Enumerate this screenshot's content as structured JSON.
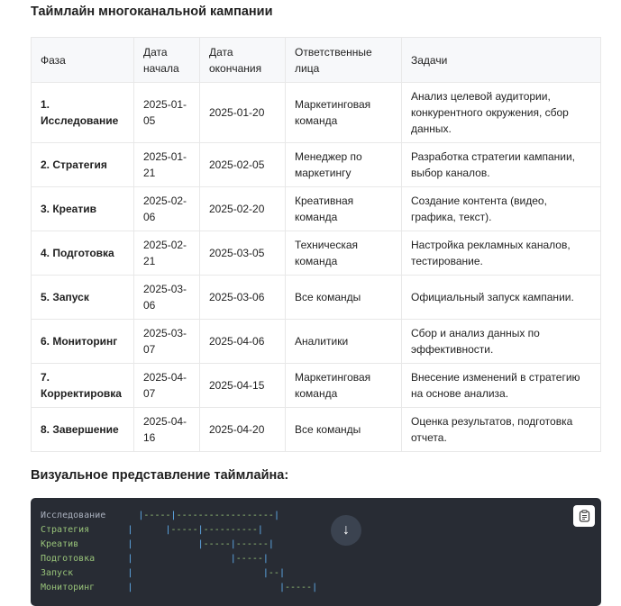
{
  "title": "Таймлайн многоканальной кампании",
  "table": {
    "headers": [
      "Фаза",
      "Дата начала",
      "Дата окончания",
      "Ответственные лица",
      "Задачи"
    ],
    "rows": [
      [
        "1. Исследование",
        "2025-01-05",
        "2025-01-20",
        "Маркетинговая команда",
        "Анализ целевой аудитории, конкурентного окружения, сбор данных."
      ],
      [
        "2. Стратегия",
        "2025-01-21",
        "2025-02-05",
        "Менеджер по маркетингу",
        "Разработка стратегии кампании, выбор каналов."
      ],
      [
        "3. Креатив",
        "2025-02-06",
        "2025-02-20",
        "Креативная команда",
        "Создание контента (видео, графика, текст)."
      ],
      [
        "4. Подготовка",
        "2025-02-21",
        "2025-03-05",
        "Техническая команда",
        "Настройка рекламных каналов, тестирование."
      ],
      [
        "5. Запуск",
        "2025-03-06",
        "2025-03-06",
        "Все команды",
        "Официальный запуск кампании."
      ],
      [
        "6. Мониторинг",
        "2025-03-07",
        "2025-04-06",
        "Аналитики",
        "Сбор и анализ данных по эффективности."
      ],
      [
        "7. Корректировка",
        "2025-04-07",
        "2025-04-15",
        "Маркетинговая команда",
        "Внесение изменений в стратегию на основе анализа."
      ],
      [
        "8. Завершение",
        "2025-04-16",
        "2025-04-20",
        "Все команды",
        "Оценка результатов, подготовка отчета."
      ]
    ]
  },
  "visual_title": "Визуальное представление таймлайна:",
  "code_lines": [
    {
      "label": "Исследование",
      "pad": "     ",
      "bars": " |-----|------------------|"
    },
    {
      "label": "Стратегия",
      "pad": "       ",
      "bars": "|      |-----|----------|"
    },
    {
      "label": "Креатив",
      "pad": "         ",
      "bars": "|            |-----|------|"
    },
    {
      "label": "Подготовка",
      "pad": "      ",
      "bars": "|                  |-----|"
    },
    {
      "label": "Запуск",
      "pad": "          ",
      "bars": "|                        |--|"
    },
    {
      "label": "Мониторинг",
      "pad": "      ",
      "bars": "|                           |-----|"
    }
  ],
  "icons": {
    "copy": "clipboard-icon",
    "scroll": "arrow-down-icon"
  }
}
